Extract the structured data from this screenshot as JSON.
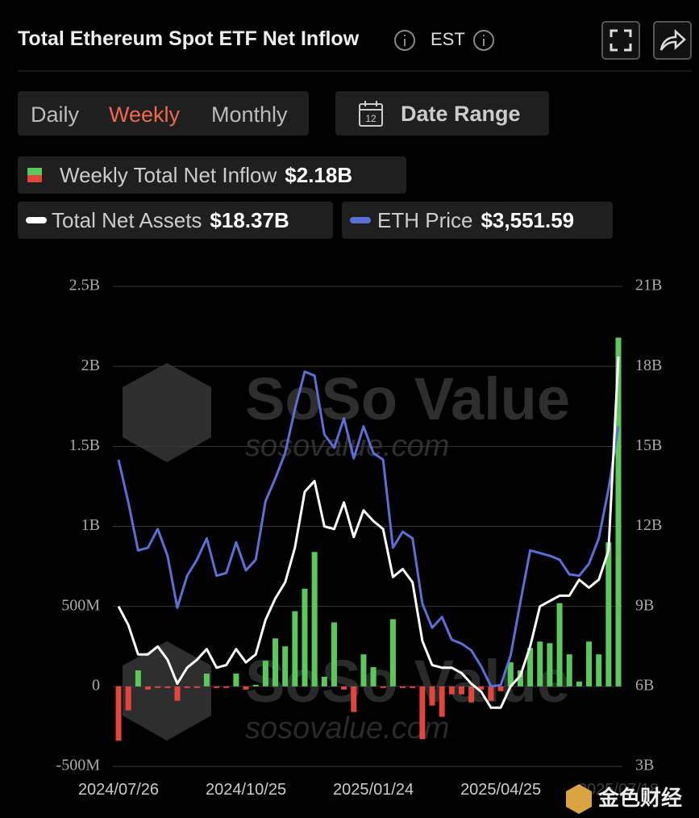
{
  "header": {
    "title": "Total Ethereum Spot ETF Net Inflow",
    "timezone": "EST"
  },
  "controls": {
    "tabs": [
      "Daily",
      "Weekly",
      "Monthly"
    ],
    "active_tab": 1,
    "date_range": "Date Range"
  },
  "chart_data": {
    "type": "combo",
    "watermark": "SoSo Value",
    "watermark_url": "sosovalue.com",
    "categories": [
      "2024/07/26",
      null,
      null,
      null,
      null,
      null,
      null,
      null,
      null,
      null,
      null,
      null,
      null,
      "2024/10/25",
      null,
      null,
      null,
      null,
      null,
      null,
      null,
      null,
      null,
      null,
      null,
      null,
      "2025/01/24",
      null,
      null,
      null,
      null,
      null,
      null,
      null,
      null,
      null,
      null,
      null,
      null,
      "2025/04/25",
      null,
      null,
      null,
      null,
      null,
      null,
      null,
      null,
      null,
      null,
      null,
      "2025/07/18"
    ],
    "series": [
      {
        "name": "Weekly Total Net Inflow",
        "type": "bar",
        "up_color": "#5ac85a",
        "down_color": "#e0463c",
        "latest": "$2.18B",
        "values": [
          -0.34,
          -0.15,
          0.1,
          -0.02,
          -0.01,
          -0.01,
          -0.09,
          -0.01,
          -0.01,
          0.08,
          -0.01,
          -0.01,
          0.08,
          -0.02,
          0.01,
          0.16,
          0.3,
          0.25,
          0.47,
          0.61,
          0.84,
          0.06,
          0.4,
          -0.02,
          -0.16,
          0.2,
          0.12,
          -0.01,
          0.42,
          -0.01,
          -0.01,
          -0.33,
          -0.12,
          -0.19,
          -0.05,
          -0.05,
          -0.1,
          -0.02,
          -0.09,
          -0.03,
          0.15,
          0.1,
          0.24,
          0.28,
          0.27,
          0.52,
          0.2,
          0.03,
          0.28,
          0.2,
          0.9,
          2.18
        ]
      },
      {
        "name": "Total Net Assets",
        "type": "line",
        "axis": "y2",
        "color": "#ffffff",
        "latest": "$18.37B",
        "values": [
          9.0,
          8.3,
          7.2,
          7.2,
          7.5,
          7.0,
          6.1,
          6.7,
          7.0,
          7.4,
          6.7,
          6.8,
          7.4,
          6.9,
          7.2,
          8.5,
          9.3,
          9.9,
          11.2,
          13.3,
          13.7,
          12.0,
          11.9,
          12.9,
          11.6,
          12.6,
          12.2,
          11.9,
          10.1,
          10.4,
          9.9,
          7.7,
          6.8,
          6.7,
          6.7,
          6.5,
          6.1,
          5.8,
          5.2,
          5.2,
          6.0,
          6.4,
          7.5,
          9.0,
          9.2,
          9.4,
          9.4,
          10.0,
          9.7,
          10.0,
          11.1,
          18.37
        ]
      },
      {
        "name": "ETH Price",
        "type": "line",
        "axis": "y3",
        "color": "#5b6fd6",
        "latest": "$3,551.59",
        "values": [
          3300,
          2980,
          2620,
          2640,
          2780,
          2580,
          2190,
          2430,
          2550,
          2710,
          2430,
          2450,
          2680,
          2470,
          2550,
          2990,
          3160,
          3350,
          3680,
          3960,
          3930,
          3490,
          3390,
          3610,
          3310,
          3550,
          3350,
          3300,
          2640,
          2760,
          2710,
          2220,
          2040,
          2120,
          1950,
          1920,
          1870,
          1750,
          1600,
          1610,
          1830,
          2230,
          2620,
          2600,
          2580,
          2550,
          2440,
          2430,
          2520,
          2710,
          3080,
          3551.59
        ]
      }
    ],
    "ylim": [
      -0.5,
      2.5
    ],
    "yticks": [
      {
        "value": -0.5,
        "label": "-500M"
      },
      0,
      {
        "value": 0.5,
        "label": "500M"
      },
      {
        "value": 1,
        "label": "1B"
      },
      {
        "value": 1.5,
        "label": "1.5B"
      },
      {
        "value": 2,
        "label": "2B"
      },
      {
        "value": 2.5,
        "label": "2.5B"
      }
    ],
    "y2lim": [
      3,
      21
    ],
    "y2ticks": [
      {
        "value": 3,
        "label": "3B"
      },
      {
        "value": 6,
        "label": "6B"
      },
      {
        "value": 9,
        "label": "9B"
      },
      {
        "value": 12,
        "label": "12B"
      },
      {
        "value": 15,
        "label": "15B"
      },
      {
        "value": 18,
        "label": "18B"
      },
      {
        "value": 21,
        "label": "21B"
      }
    ],
    "y3lim": [
      1000,
      4600
    ],
    "grid": true
  },
  "badge": "金色财经"
}
